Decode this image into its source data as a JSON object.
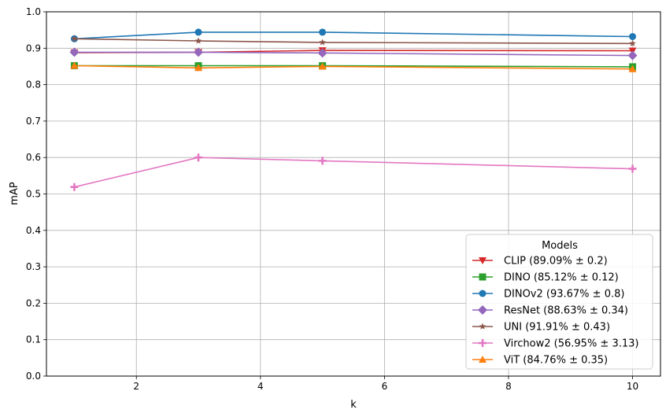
{
  "chart_data": {
    "type": "line",
    "title": "",
    "xlabel": "k",
    "ylabel": "mAP",
    "xlim": [
      0.55,
      10.45
    ],
    "ylim": [
      0.0,
      1.0
    ],
    "xticks": [
      "2",
      "4",
      "6",
      "8",
      "10"
    ],
    "yticks": [
      "0.0",
      "0.1",
      "0.2",
      "0.3",
      "0.4",
      "0.5",
      "0.6",
      "0.7",
      "0.8",
      "0.9",
      "1.0"
    ],
    "grid": true,
    "legend": {
      "title": "Models",
      "placement": "lower-right"
    },
    "x": [
      1,
      3,
      5,
      10
    ],
    "series": [
      {
        "name": "CLIP (89.09% ± 0.2)",
        "color": "#d62728",
        "marker": "triangle-down",
        "values": [
          0.888,
          0.889,
          0.894,
          0.893
        ]
      },
      {
        "name": "DINO (85.12% ± 0.12)",
        "color": "#2ca02c",
        "marker": "square",
        "values": [
          0.852,
          0.852,
          0.852,
          0.849
        ]
      },
      {
        "name": "DINOv2 (93.67% ± 0.8)",
        "color": "#1f77b4",
        "marker": "circle",
        "values": [
          0.926,
          0.944,
          0.944,
          0.932
        ]
      },
      {
        "name": "ResNet (88.63% ± 0.34)",
        "color": "#9467bd",
        "marker": "diamond",
        "values": [
          0.889,
          0.889,
          0.887,
          0.88
        ]
      },
      {
        "name": "UNI (91.91% ± 0.43)",
        "color": "#8c564b",
        "marker": "star",
        "values": [
          0.926,
          0.92,
          0.916,
          0.913
        ]
      },
      {
        "name": "Virchow2 (56.95% ± 3.13)",
        "color": "#e377c2",
        "marker": "plus",
        "values": [
          0.519,
          0.6,
          0.591,
          0.569
        ]
      },
      {
        "name": "ViT (84.76% ± 0.35)",
        "color": "#ff7f0e",
        "marker": "triangle-up",
        "values": [
          0.852,
          0.846,
          0.85,
          0.843
        ]
      }
    ]
  }
}
